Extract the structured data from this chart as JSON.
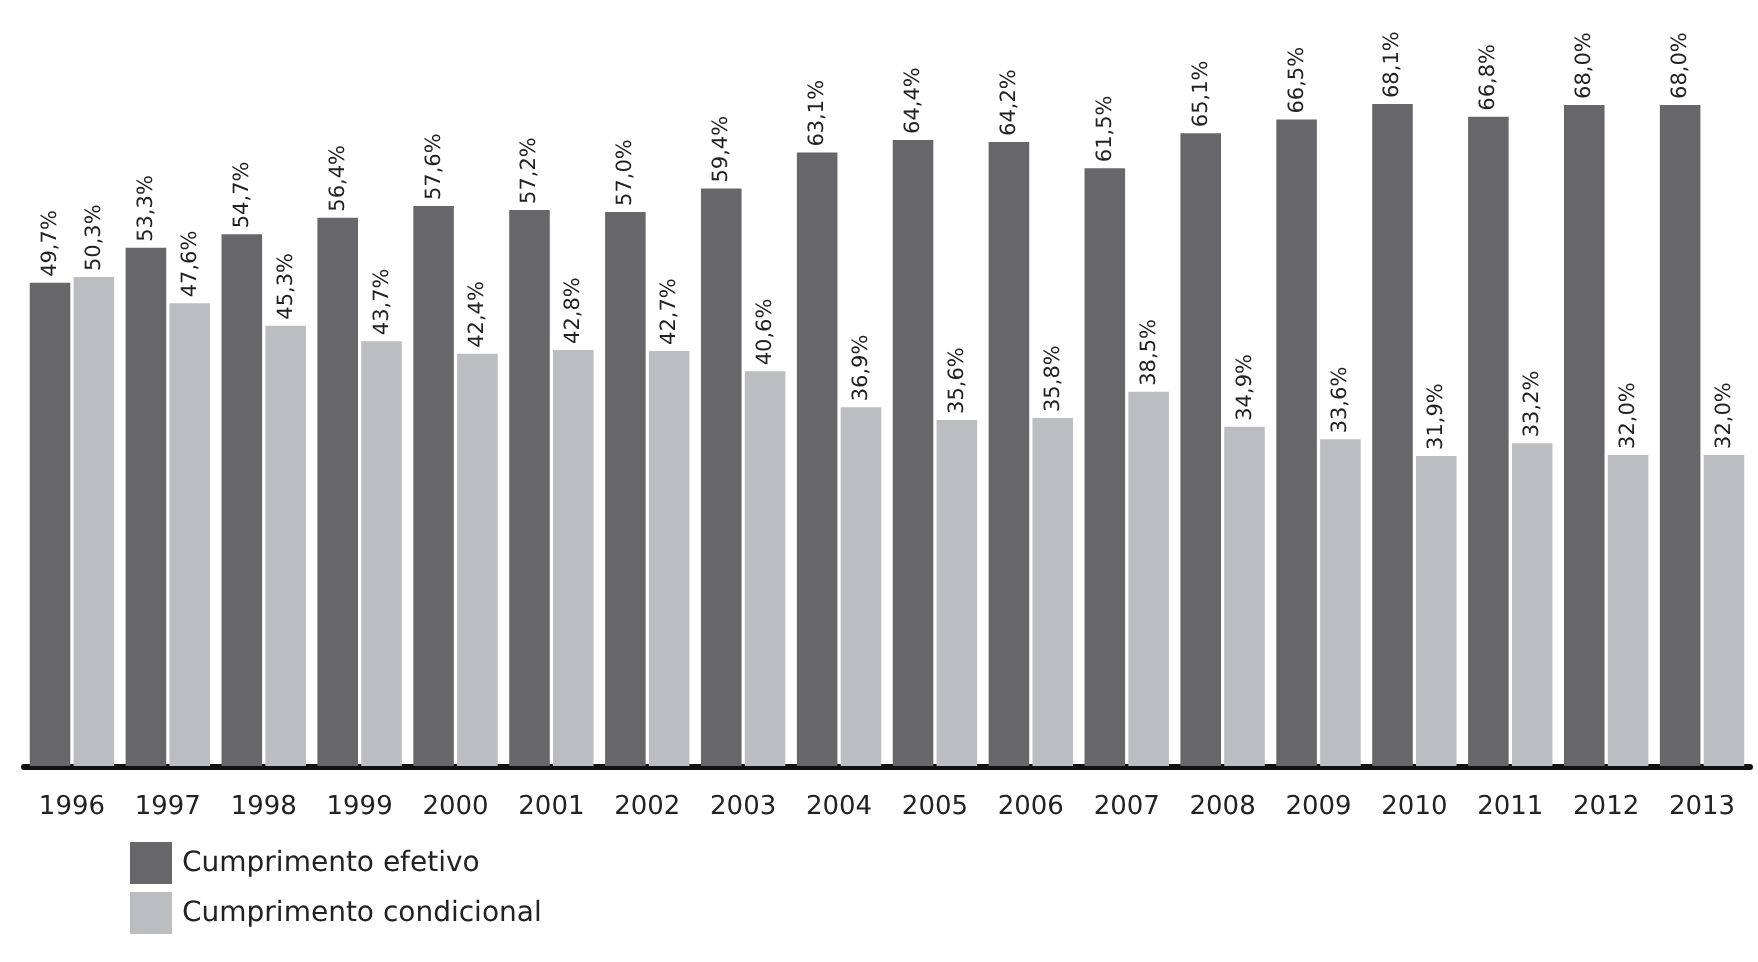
{
  "chart_data": {
    "type": "bar",
    "categories": [
      "1996",
      "1997",
      "1998",
      "1999",
      "2000",
      "2001",
      "2002",
      "2003",
      "2004",
      "2005",
      "2006",
      "2007",
      "2008",
      "2009",
      "2010",
      "2011",
      "2012",
      "2013"
    ],
    "series": [
      {
        "name": "Cumprimento efetivo",
        "color": "#67676a",
        "values": [
          49.7,
          53.3,
          54.7,
          56.4,
          57.6,
          57.2,
          57.0,
          59.4,
          63.1,
          64.4,
          64.2,
          61.5,
          65.1,
          66.5,
          68.1,
          66.8,
          68.0,
          68.0
        ],
        "value_labels": [
          "49,7%",
          "53,3%",
          "54,7%",
          "56,4%",
          "57,6%",
          "57,2%",
          "57,0%",
          "59,4%",
          "63,1%",
          "64,4%",
          "64,2%",
          "61,5%",
          "65,1%",
          "66,5%",
          "68,1%",
          "66,8%",
          "68,0%",
          "68,0%"
        ]
      },
      {
        "name": "Cumprimento condicional",
        "color": "#bcbdc0",
        "values": [
          50.3,
          47.6,
          45.3,
          43.7,
          42.4,
          42.8,
          42.7,
          40.6,
          36.9,
          35.6,
          35.8,
          38.5,
          34.9,
          33.6,
          31.9,
          33.2,
          32.0,
          32.0
        ],
        "value_labels": [
          "50,3%",
          "47,6%",
          "45,3%",
          "43,7%",
          "42,4%",
          "42,8%",
          "42,7%",
          "40,6%",
          "36,9%",
          "35,6%",
          "35,8%",
          "38,5%",
          "34,9%",
          "33,6%",
          "31,9%",
          "33,2%",
          "32,0%",
          "32,0%"
        ]
      }
    ],
    "legend": "bottom left"
  }
}
